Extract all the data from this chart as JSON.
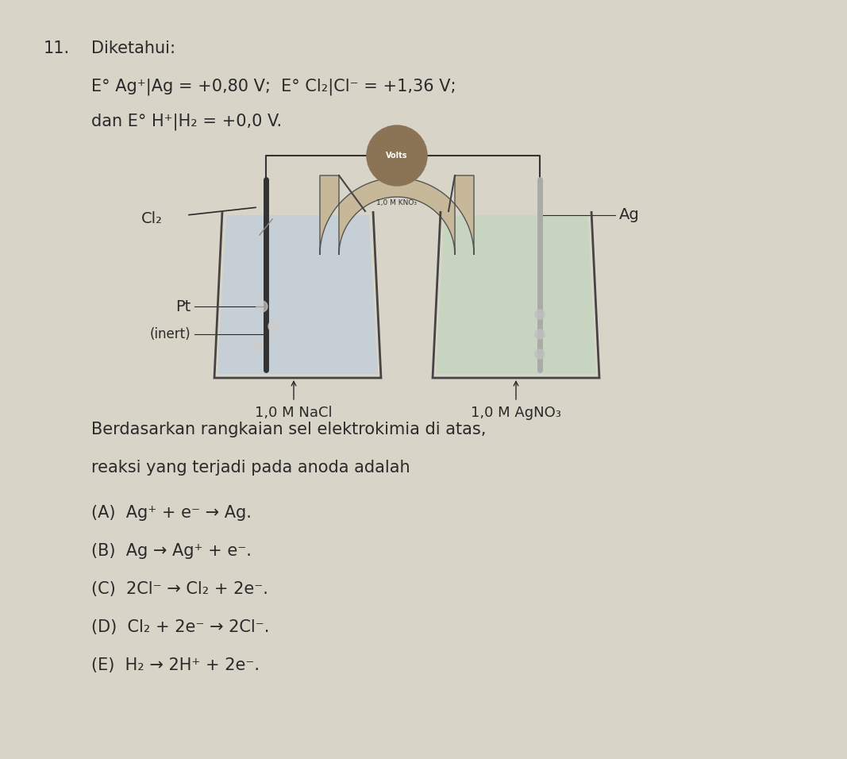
{
  "bg_color": "#d8d4c8",
  "text_color": "#2a2a2a",
  "title_number": "11.",
  "title_word": "Diketahui:",
  "line1": "E° Ag⁺|Ag = +0,80 V;  E° Cl₂|Cl⁻ = +1,36 V;",
  "line2": "dan E° H⁺|H₂ = +0,0 V.",
  "question": "Berdasarkan rangkaian sel elektrokimia di atas,",
  "question2": "reaksi yang terjadi pada anoda adalah",
  "opt_A": "(A)  Ag⁺ + e⁻ → Ag.",
  "opt_B": "(B)  Ag → Ag⁺ + e⁻.",
  "opt_C": "(C)  2Cl⁻ → Cl₂ + 2e⁻.",
  "opt_D": "(D)  Cl₂ + 2e⁻ → 2Cl⁻.",
  "opt_E": "(E)  H₂ → 2H⁺ + 2e⁻.",
  "label_Cl2": "Cl₂",
  "label_Pt": "Pt",
  "label_inert": "(inert)",
  "label_Ag": "Ag",
  "label_NaCl": "1,0 M NaCl",
  "label_AgNO3": "1,0 M AgNO₃",
  "label_Volts": "Volts",
  "label_KNO3": "1,0 M KNO₃"
}
